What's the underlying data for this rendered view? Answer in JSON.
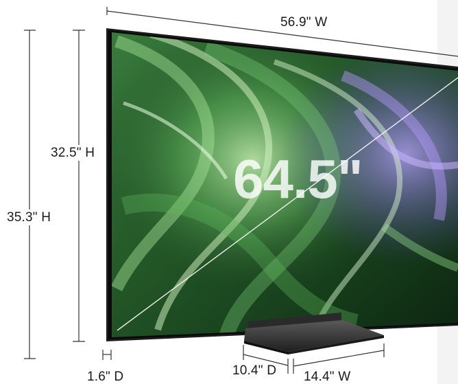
{
  "dimensions": {
    "width": "56.9\" W",
    "screen_height": "32.5\" H",
    "total_height": "35.3\" H",
    "depth": "1.6\" D",
    "stand_depth": "10.4\" D",
    "stand_width": "14.4\" W",
    "diagonal": "64.5\""
  },
  "colors": {
    "screen_dark": "#0f2a14",
    "screen_green": "#3f9a48",
    "screen_light": "#b6e6a6",
    "screen_purple": "#8a6ad8",
    "bezel": "#1c1c1c",
    "stand": "#3a3a3a",
    "dimension_line": "#333333"
  }
}
